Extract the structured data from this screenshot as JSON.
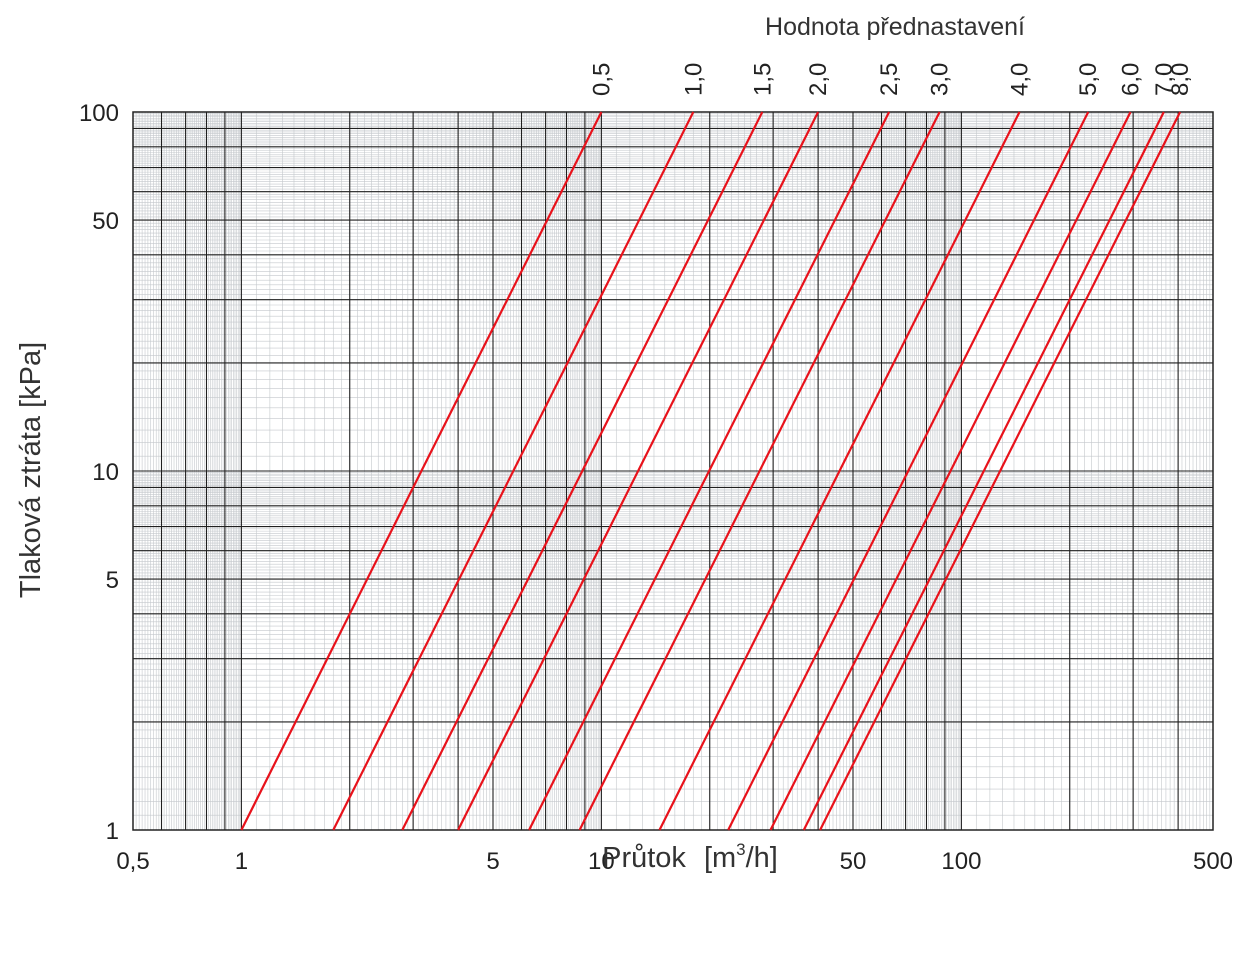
{
  "chart_data": {
    "type": "line",
    "title": "Hodnota přednastavení",
    "xlabel": {
      "main": "Průtok",
      "unit_prefix": "[m",
      "unit_sup": "3",
      "unit_suffix": "/h]"
    },
    "ylabel": "Tlaková ztráta  [kPa]",
    "x_scale": "log",
    "y_scale": "log",
    "xlim": [
      0.5,
      500
    ],
    "ylim": [
      1,
      100
    ],
    "x_tick_labels": [
      {
        "value": 0.5,
        "label": "0,5"
      },
      {
        "value": 1,
        "label": "1"
      },
      {
        "value": 5,
        "label": "5"
      },
      {
        "value": 10,
        "label": "10"
      },
      {
        "value": 50,
        "label": "50"
      },
      {
        "value": 100,
        "label": "100"
      },
      {
        "value": 500,
        "label": "500"
      }
    ],
    "y_tick_labels": [
      {
        "value": 1,
        "label": "1"
      },
      {
        "value": 5,
        "label": "5"
      },
      {
        "value": 10,
        "label": "10"
      },
      {
        "value": 50,
        "label": "50"
      },
      {
        "value": 100,
        "label": "100"
      }
    ],
    "grid": true,
    "line_color": "#e8121b",
    "series": [
      {
        "name": "0,5",
        "x": [
          1.0,
          10.0
        ],
        "y": [
          1,
          100
        ]
      },
      {
        "name": "1,0",
        "x": [
          1.8,
          18.0
        ],
        "y": [
          1,
          100
        ]
      },
      {
        "name": "1,5",
        "x": [
          2.8,
          28.0
        ],
        "y": [
          1,
          100
        ]
      },
      {
        "name": "2,0",
        "x": [
          4.0,
          40.0
        ],
        "y": [
          1,
          100
        ]
      },
      {
        "name": "2,5",
        "x": [
          6.3,
          63.0
        ],
        "y": [
          1,
          100
        ]
      },
      {
        "name": "3,0",
        "x": [
          8.7,
          87.0
        ],
        "y": [
          1,
          100
        ]
      },
      {
        "name": "4,0",
        "x": [
          14.5,
          145.0
        ],
        "y": [
          1,
          100
        ]
      },
      {
        "name": "5,0",
        "x": [
          22.5,
          225.0
        ],
        "y": [
          1,
          100
        ]
      },
      {
        "name": "6,0",
        "x": [
          29.5,
          295.0
        ],
        "y": [
          1,
          100
        ]
      },
      {
        "name": "7,0",
        "x": [
          36.5,
          365.0
        ],
        "y": [
          1,
          100
        ]
      },
      {
        "name": "8,0",
        "x": [
          40.5,
          405.0
        ],
        "y": [
          1,
          100
        ]
      }
    ]
  }
}
